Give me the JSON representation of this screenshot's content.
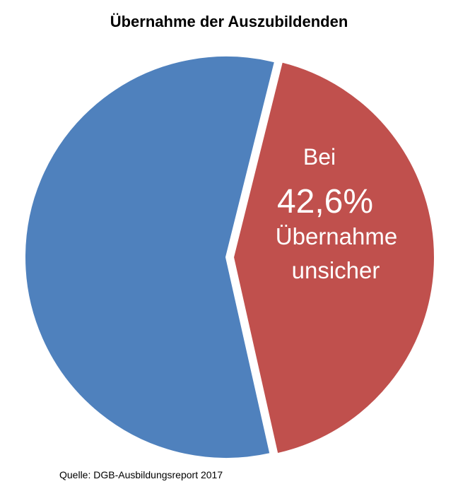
{
  "chart_data": {
    "type": "pie",
    "title": "Übernahme der Auszubildenden",
    "slices": [
      {
        "label": "",
        "value": 57.4,
        "color": "#4f81bd"
      },
      {
        "label": "",
        "value": 42.6,
        "color": "#c0504d",
        "exploded": true
      }
    ],
    "slice_annotation": {
      "prefix": "Bei",
      "value_text": "42,6%",
      "suffix_line1": "Übernahme",
      "suffix_line2": "unsicher"
    },
    "legend": "none"
  },
  "source": "Quelle:  DGB-Ausbildungsreport  2017"
}
